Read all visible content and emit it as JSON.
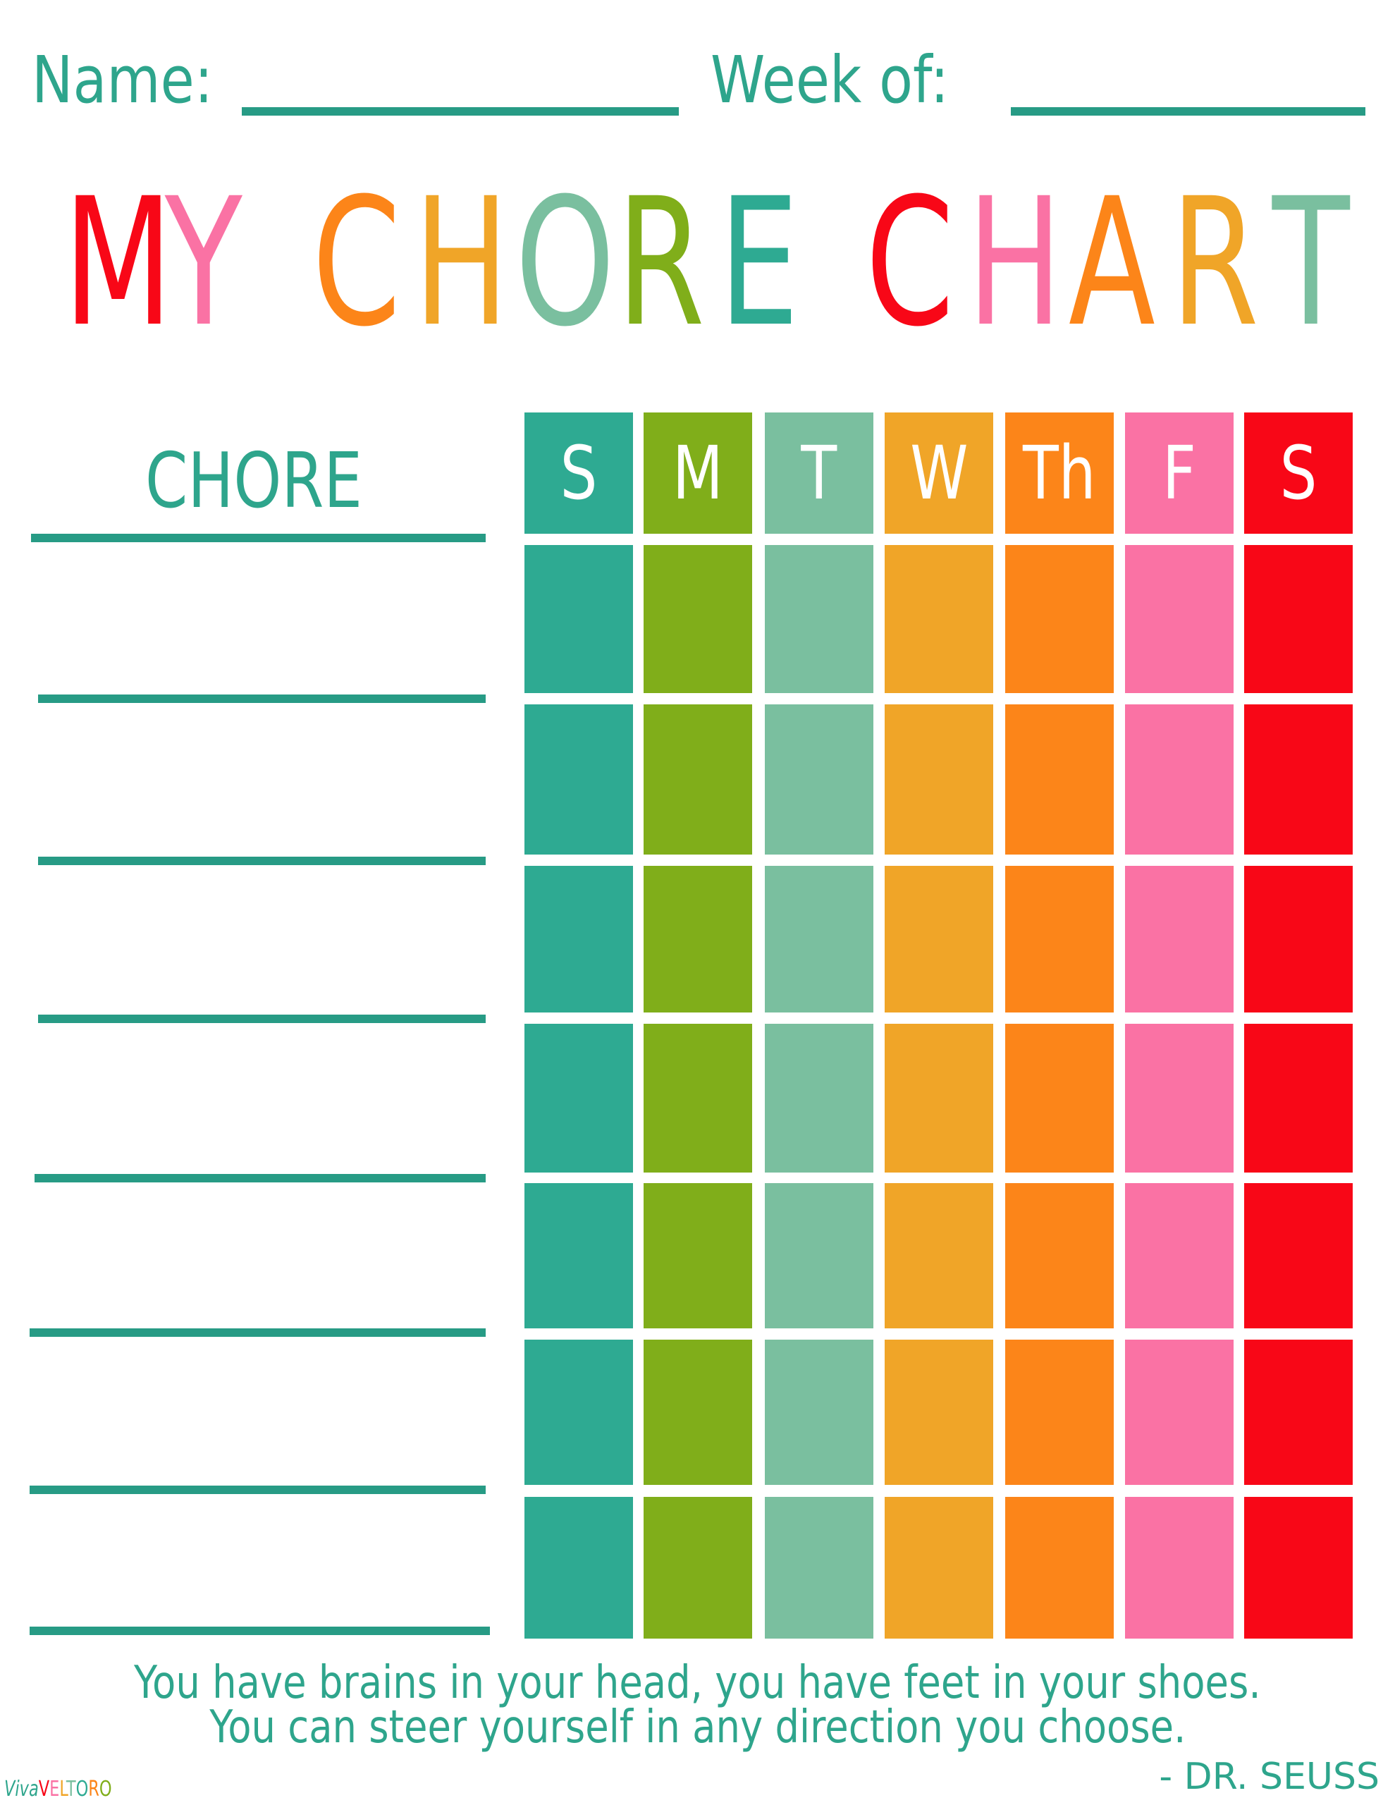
{
  "header": {
    "name_label": "Name:",
    "week_label": "Week of:"
  },
  "title": {
    "letters": [
      {
        "ch": "M",
        "color": "#f80717"
      },
      {
        "ch": "Y",
        "color": "#fa72a4"
      },
      {
        "ch": "C",
        "color": "#fc8519"
      },
      {
        "ch": "H",
        "color": "#f0a528"
      },
      {
        "ch": "O",
        "color": "#7abf9f"
      },
      {
        "ch": "R",
        "color": "#80ae1a"
      },
      {
        "ch": "E",
        "color": "#2eaa92"
      },
      {
        "ch": "C",
        "color": "#f80717"
      },
      {
        "ch": "H",
        "color": "#fa72a4"
      },
      {
        "ch": "A",
        "color": "#fc8519"
      },
      {
        "ch": "R",
        "color": "#f0a528"
      },
      {
        "ch": "T",
        "color": "#7abf9f"
      }
    ]
  },
  "chart": {
    "chore_header": "CHORE",
    "days": [
      {
        "label": "S",
        "color": "#2eaa92"
      },
      {
        "label": "M",
        "color": "#80ae1a"
      },
      {
        "label": "T",
        "color": "#7abf9f"
      },
      {
        "label": "W",
        "color": "#f0a528"
      },
      {
        "label": "Th",
        "color": "#fc8519"
      },
      {
        "label": "F",
        "color": "#fa72a4"
      },
      {
        "label": "S",
        "color": "#f80717"
      }
    ],
    "row_count": 7
  },
  "quote": {
    "line1": "You have brains in your head, you have feet in your shoes.",
    "line2": "You can steer yourself in any direction you choose.",
    "author": "- DR. SEUSS"
  },
  "logo": {
    "text": "VivaVELTORO"
  }
}
